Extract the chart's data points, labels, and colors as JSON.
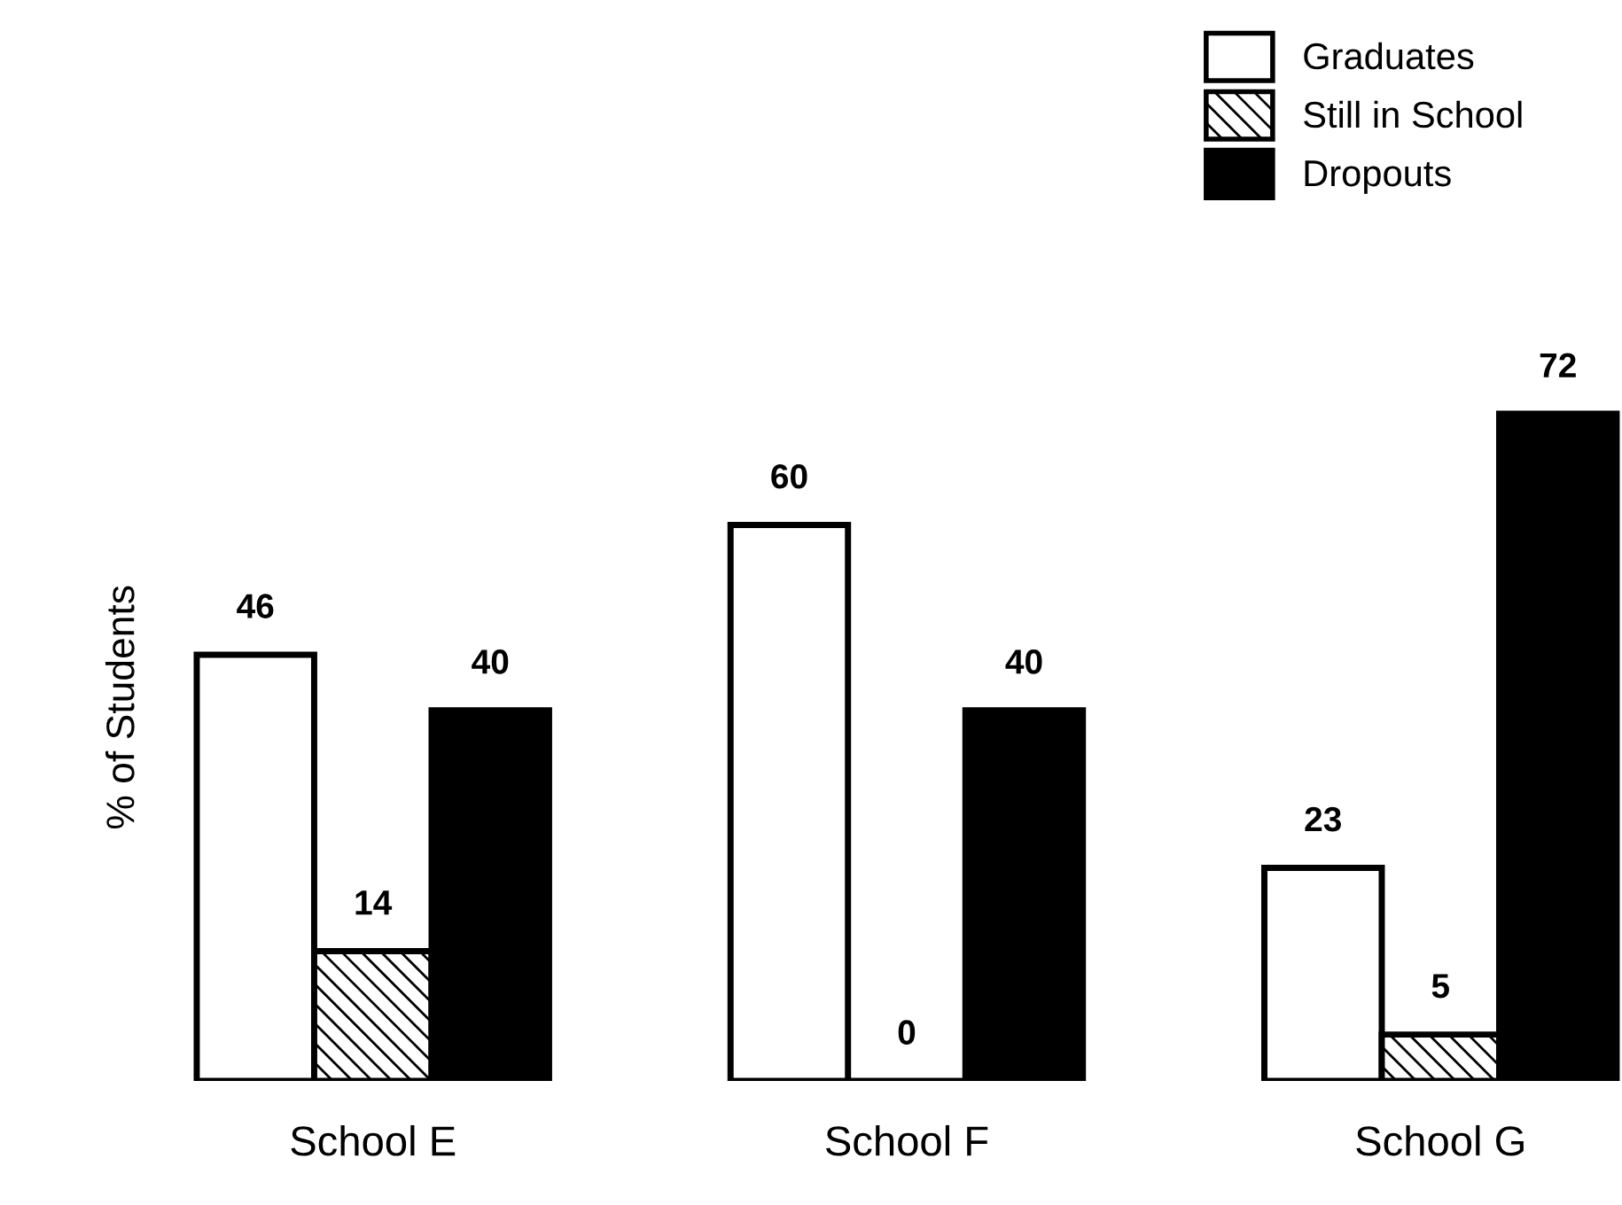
{
  "chart_data": {
    "type": "bar",
    "ylabel": "% of Students",
    "categories": [
      "School E",
      "School F",
      "School G"
    ],
    "series": [
      {
        "name": "Graduates",
        "color": "#ffffff",
        "values": [
          46,
          60,
          23
        ]
      },
      {
        "name": "Still in School",
        "color": "#000000",
        "values": [
          14,
          0,
          5
        ]
      },
      {
        "name": "Dropouts",
        "color": "#000000",
        "values": [
          40,
          40,
          72
        ]
      }
    ],
    "data_labels": true,
    "legend": "top right",
    "grid": false
  }
}
